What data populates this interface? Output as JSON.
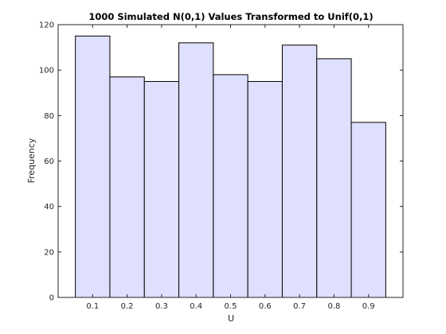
{
  "chart_data": {
    "type": "bar",
    "title": "1000 Simulated N(0,1) Values Transformed to Unif(0,1)",
    "xlabel": "U",
    "ylabel": "Frequency",
    "bin_edges": [
      0.05,
      0.15,
      0.25,
      0.35,
      0.45,
      0.55,
      0.65,
      0.75,
      0.85,
      0.95
    ],
    "categories": [
      "0.1",
      "0.2",
      "0.3",
      "0.4",
      "0.5",
      "0.6",
      "0.7",
      "0.8",
      "0.9"
    ],
    "values": [
      115,
      97,
      95,
      112,
      98,
      95,
      111,
      105,
      77
    ],
    "xlim": [
      0,
      1
    ],
    "ylim": [
      0,
      120
    ],
    "yticks": [
      0,
      20,
      40,
      60,
      80,
      100,
      120
    ],
    "xticks": [
      0.1,
      0.2,
      0.3,
      0.4,
      0.5,
      0.6,
      0.7,
      0.8,
      0.9
    ],
    "grid": false,
    "colors": {
      "bar_fill": "#dfdffe",
      "bar_edge": "#000000",
      "axis": "#262626"
    }
  }
}
